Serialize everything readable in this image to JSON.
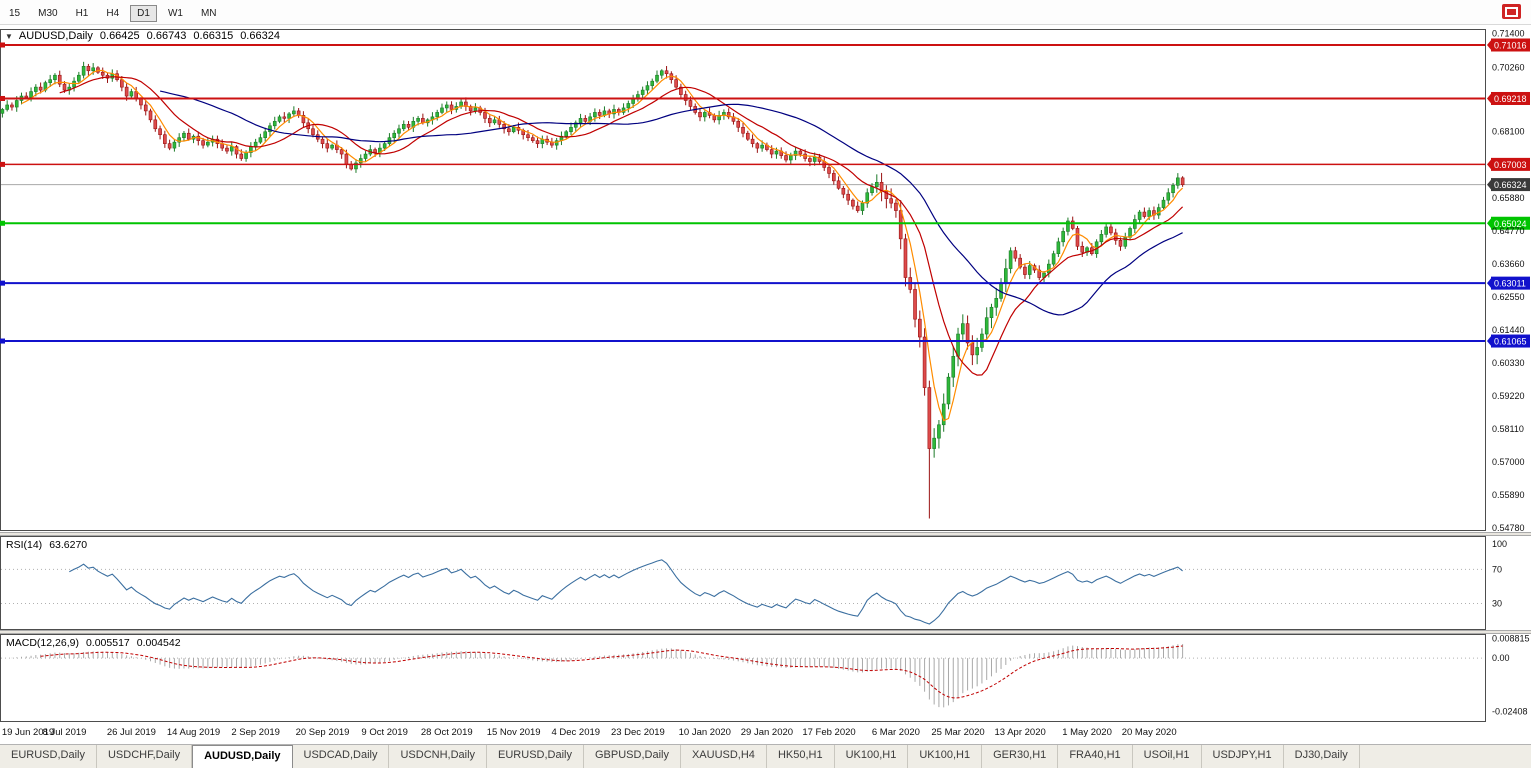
{
  "toolbar": {
    "timeframes": [
      "15",
      "M30",
      "H1",
      "H4",
      "D1",
      "W1",
      "MN"
    ],
    "active_timeframe": "D1"
  },
  "chart": {
    "title": "AUDUSD,Daily",
    "ohlc": {
      "open": "0.66425",
      "high": "0.66743",
      "low": "0.66315",
      "close": "0.66324"
    }
  },
  "chart_data": {
    "type": "candlestick",
    "symbol": "AUDUSD",
    "timeframe": "Daily",
    "first_open": 0.6872,
    "closes": [
      0.6885,
      0.69,
      0.6893,
      0.6915,
      0.693,
      0.6925,
      0.6945,
      0.696,
      0.695,
      0.6975,
      0.6985,
      0.7,
      0.697,
      0.695,
      0.696,
      0.698,
      0.7,
      0.703,
      0.7015,
      0.7025,
      0.701,
      0.7,
      0.699,
      0.7005,
      0.6985,
      0.696,
      0.693,
      0.6945,
      0.692,
      0.69,
      0.688,
      0.685,
      0.682,
      0.68,
      0.677,
      0.6755,
      0.6775,
      0.679,
      0.6805,
      0.6785,
      0.6795,
      0.678,
      0.6765,
      0.6775,
      0.6785,
      0.677,
      0.6755,
      0.6745,
      0.676,
      0.6735,
      0.672,
      0.674,
      0.676,
      0.6775,
      0.679,
      0.681,
      0.683,
      0.6845,
      0.686,
      0.6855,
      0.687,
      0.688,
      0.6865,
      0.684,
      0.682,
      0.68,
      0.6785,
      0.677,
      0.6755,
      0.6765,
      0.675,
      0.6735,
      0.67,
      0.6685,
      0.6705,
      0.672,
      0.6735,
      0.675,
      0.674,
      0.6755,
      0.677,
      0.679,
      0.6805,
      0.682,
      0.6835,
      0.6825,
      0.6845,
      0.6855,
      0.684,
      0.685,
      0.686,
      0.6875,
      0.689,
      0.69,
      0.6885,
      0.6895,
      0.691,
      0.6895,
      0.688,
      0.689,
      0.6875,
      0.6855,
      0.684,
      0.685,
      0.6835,
      0.682,
      0.681,
      0.6825,
      0.6815,
      0.68,
      0.679,
      0.678,
      0.677,
      0.6785,
      0.6775,
      0.6765,
      0.678,
      0.6795,
      0.681,
      0.6825,
      0.684,
      0.6855,
      0.6845,
      0.686,
      0.6875,
      0.6865,
      0.688,
      0.687,
      0.6885,
      0.6875,
      0.689,
      0.6905,
      0.692,
      0.6935,
      0.695,
      0.6965,
      0.698,
      0.7,
      0.7015,
      0.7005,
      0.6985,
      0.696,
      0.6935,
      0.6915,
      0.6895,
      0.6875,
      0.686,
      0.6875,
      0.6865,
      0.685,
      0.6865,
      0.6875,
      0.686,
      0.6845,
      0.6825,
      0.6805,
      0.6785,
      0.677,
      0.6755,
      0.6765,
      0.675,
      0.6735,
      0.6745,
      0.673,
      0.6715,
      0.673,
      0.6745,
      0.6735,
      0.672,
      0.671,
      0.6725,
      0.671,
      0.669,
      0.667,
      0.6645,
      0.662,
      0.66,
      0.658,
      0.656,
      0.6545,
      0.657,
      0.6605,
      0.6625,
      0.664,
      0.661,
      0.6585,
      0.657,
      0.6545,
      0.645,
      0.632,
      0.628,
      0.618,
      0.612,
      0.595,
      0.5745,
      0.578,
      0.5825,
      0.5895,
      0.5985,
      0.6055,
      0.613,
      0.6165,
      0.61,
      0.606,
      0.6085,
      0.613,
      0.6185,
      0.622,
      0.625,
      0.63,
      0.635,
      0.641,
      0.6385,
      0.6355,
      0.633,
      0.636,
      0.6345,
      0.632,
      0.6335,
      0.6365,
      0.64,
      0.644,
      0.6475,
      0.651,
      0.6485,
      0.6425,
      0.6405,
      0.642,
      0.64,
      0.644,
      0.6465,
      0.649,
      0.647,
      0.6445,
      0.6425,
      0.6455,
      0.6485,
      0.6515,
      0.654,
      0.6525,
      0.6545,
      0.653,
      0.6555,
      0.658,
      0.6605,
      0.663,
      0.6655,
      0.6632
    ],
    "spikes": [
      {
        "index": 189,
        "low": 0.629
      },
      {
        "index": 194,
        "low": 0.551
      }
    ],
    "volatile_zone": [
      183,
      210
    ],
    "price_axis": {
      "max": 0.7152,
      "min": 0.54713,
      "labels": [
        "0.71400",
        "0.70260",
        "0.68100",
        "0.65880",
        "0.64770",
        "0.63660",
        "0.62550",
        "0.61440",
        "0.60330",
        "0.59220",
        "0.58110",
        "0.57000",
        "0.55890",
        "0.54780"
      ]
    },
    "levels": [
      {
        "price": 0.71016,
        "label": "0.71016",
        "color": "#cc1111",
        "width": 2
      },
      {
        "price": 0.69218,
        "label": "0.69218",
        "color": "#cc1111",
        "width": 2
      },
      {
        "price": 0.67003,
        "label": "0.67003",
        "color": "#cc1111",
        "width": 1.4
      },
      {
        "price": 0.65024,
        "label": "0.65024",
        "color": "#00c400",
        "width": 2
      },
      {
        "price": 0.63011,
        "label": "0.63011",
        "color": "#1111cc",
        "width": 2
      },
      {
        "price": 0.61065,
        "label": "0.61065",
        "color": "#1111cc",
        "width": 2
      }
    ],
    "current_price": {
      "value": 0.66324,
      "label": "0.66324",
      "line_color": "#a8a8a8",
      "box_color": "#3a3a3a"
    },
    "moving_averages": [
      {
        "period": 5,
        "color": "#ff8c00"
      },
      {
        "period": 13,
        "color": "#c00000"
      },
      {
        "period": 34,
        "color": "#000080"
      }
    ],
    "candle_colors": {
      "up_fill": "#2eb83a",
      "up_stroke": "#1c7a28",
      "down_fill": "#dd4b4b",
      "down_stroke": "#991111"
    },
    "rsi": {
      "name": "RSI(14)",
      "value": "63.6270",
      "period": 14,
      "overbought": 70,
      "oversold": 30,
      "axis_labels": [
        "100",
        "70",
        "30"
      ],
      "scale_max": 108,
      "color": "#3b6fa0"
    },
    "macd": {
      "name": "MACD(12,26,9)",
      "value_main": "0.005517",
      "value_signal": "0.004542",
      "fast": 12,
      "slow": 26,
      "signal": 9,
      "axis_labels": [
        "0.008815",
        "0.00",
        "-0.02408"
      ],
      "scale_max": 0.0105,
      "scale_min": -0.0285,
      "hist_color": "#a8a8a8",
      "signal_color": "#c00000"
    },
    "dates": [
      "19 Jun 2019",
      "8 Jul 2019",
      "26 Jul 2019",
      "14 Aug 2019",
      "2 Sep 2019",
      "20 Sep 2019",
      "9 Oct 2019",
      "28 Oct 2019",
      "15 Nov 2019",
      "4 Dec 2019",
      "23 Dec 2019",
      "10 Jan 2020",
      "29 Jan 2020",
      "17 Feb 2020",
      "6 Mar 2020",
      "25 Mar 2020",
      "13 Apr 2020",
      "1 May 2020",
      "20 May 2020"
    ]
  },
  "tabbar": {
    "tabs": [
      "EURUSD,Daily",
      "USDCHF,Daily",
      "AUDUSD,Daily",
      "USDCAD,Daily",
      "USDCNH,Daily",
      "EURUSD,Daily",
      "GBPUSD,Daily",
      "XAUUSD,H4",
      "HK50,H1",
      "UK100,H1",
      "UK100,H1",
      "GER30,H1",
      "FRA40,H1",
      "USOil,H1",
      "USDJPY,H1",
      "DJ30,Daily"
    ],
    "active_index": 2
  }
}
